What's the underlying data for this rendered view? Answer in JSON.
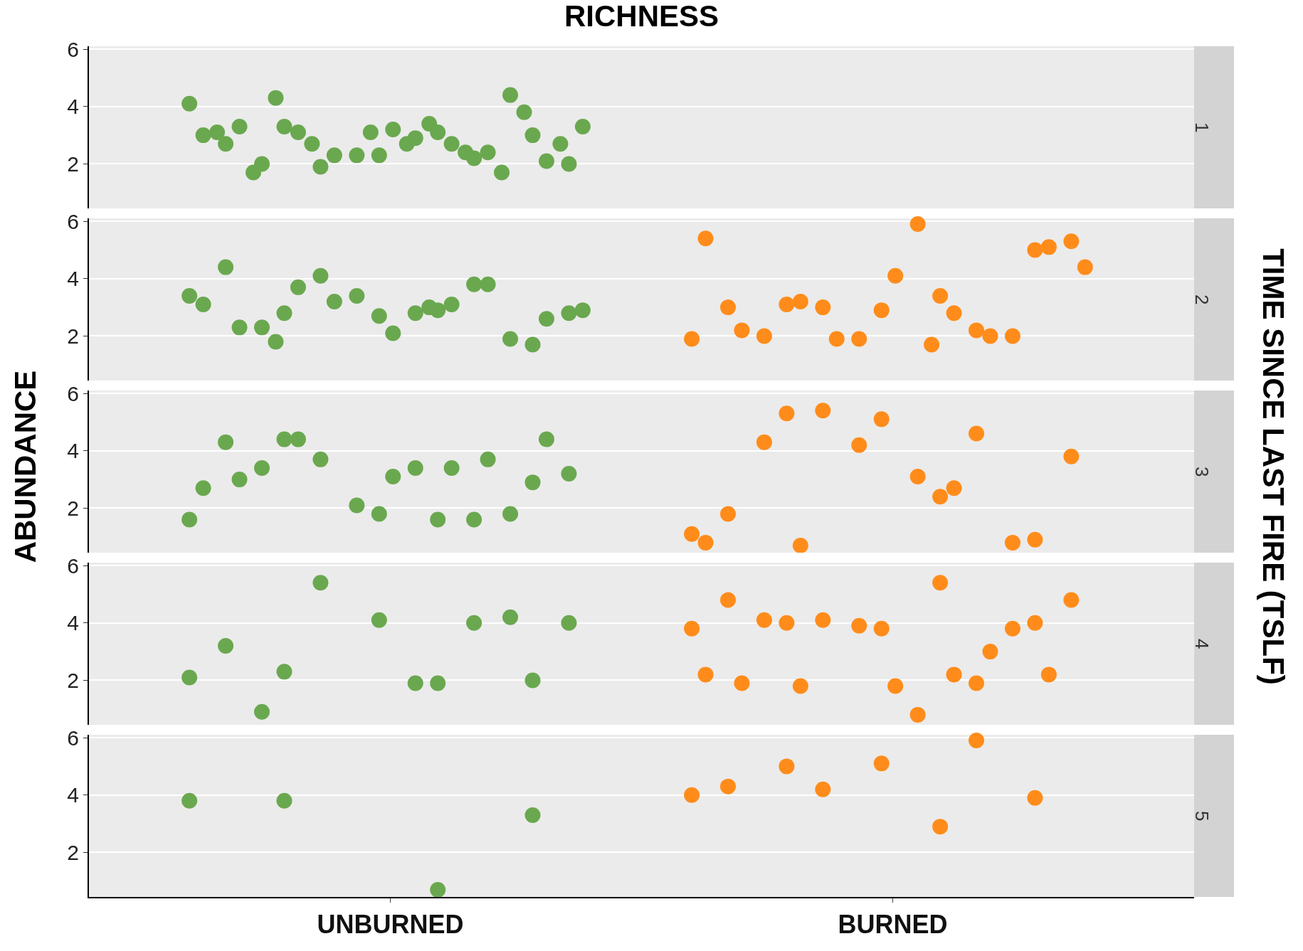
{
  "chart_data": [
    {
      "type": "scatter",
      "title": "RICHNESS",
      "annotations": [
        "1"
      ],
      "marker": "circle",
      "grid": "y",
      "tick_labels": "y",
      "categories": [
        "UNBURNED",
        "BURNED"
      ],
      "ylim": [
        0.45,
        6.1
      ],
      "yticks": [
        2,
        4,
        6
      ],
      "series": [
        {
          "color": "#6aa84f",
          "x": [
            "UNBURNED",
            "UNBURNED",
            "UNBURNED",
            "UNBURNED",
            "UNBURNED",
            "UNBURNED",
            "UNBURNED",
            "UNBURNED",
            "UNBURNED",
            "UNBURNED",
            "UNBURNED",
            "UNBURNED",
            "UNBURNED",
            "UNBURNED",
            "UNBURNED",
            "UNBURNED",
            "UNBURNED",
            "UNBURNED",
            "UNBURNED",
            "UNBURNED",
            "UNBURNED",
            "UNBURNED",
            "UNBURNED",
            "UNBURNED",
            "UNBURNED",
            "UNBURNED",
            "UNBURNED",
            "UNBURNED",
            "UNBURNED",
            "UNBURNED",
            "UNBURNED",
            "UNBURNED",
            "UNBURNED"
          ],
          "values": [
            4.1,
            3.1,
            3.3,
            3.0,
            2.3,
            2.7,
            2.2,
            1.9,
            2.0,
            2.9,
            2.0,
            4.4,
            2.3,
            3.0,
            2.7,
            3.1,
            2.1,
            3.2,
            3.3,
            2.4,
            2.3,
            3.3,
            3.4,
            4.3,
            3.8,
            3.1,
            3.1,
            2.4,
            2.7,
            2.7,
            2.7,
            1.7,
            1.7
          ]
        }
      ]
    },
    {
      "type": "scatter",
      "annotations": [
        "2"
      ],
      "marker": "circle",
      "grid": "y",
      "tick_labels": "y",
      "categories": [
        "UNBURNED",
        "BURNED"
      ],
      "ylim": [
        0.45,
        6.1
      ],
      "yticks": [
        2,
        4,
        6
      ],
      "series": [
        {
          "color": "#6aa84f",
          "x": [
            "UNBURNED",
            "UNBURNED",
            "UNBURNED",
            "UNBURNED",
            "UNBURNED",
            "UNBURNED",
            "UNBURNED",
            "UNBURNED",
            "UNBURNED",
            "UNBURNED",
            "UNBURNED",
            "UNBURNED",
            "UNBURNED",
            "UNBURNED",
            "UNBURNED",
            "UNBURNED",
            "UNBURNED",
            "UNBURNED",
            "UNBURNED",
            "UNBURNED",
            "UNBURNED",
            "UNBURNED",
            "UNBURNED",
            "UNBURNED"
          ],
          "values": [
            3.4,
            2.9,
            2.8,
            1.7,
            2.7,
            4.4,
            3.8,
            4.1,
            2.8,
            2.8,
            2.3,
            1.9,
            3.4,
            3.1,
            3.1,
            3.7,
            2.6,
            2.1,
            2.3,
            3.8,
            3.2,
            2.9,
            3.0,
            1.8
          ]
        },
        {
          "color": "#ff8c1a",
          "x": [
            "BURNED",
            "BURNED",
            "BURNED",
            "BURNED",
            "BURNED",
            "BURNED",
            "BURNED",
            "BURNED",
            "BURNED",
            "BURNED",
            "BURNED",
            "BURNED",
            "BURNED",
            "BURNED",
            "BURNED",
            "BURNED",
            "BURNED",
            "BURNED",
            "BURNED",
            "BURNED",
            "BURNED",
            "BURNED",
            "BURNED"
          ],
          "values": [
            1.9,
            3.4,
            3.1,
            5.0,
            2.9,
            3.0,
            2.2,
            3.0,
            5.3,
            5.9,
            2.0,
            2.0,
            1.9,
            5.4,
            2.8,
            3.2,
            5.1,
            4.1,
            2.2,
            2.0,
            1.9,
            4.4,
            1.7
          ]
        }
      ]
    },
    {
      "type": "scatter",
      "annotations": [
        "3",
        "TIME SINCE LAST FIRE (TSLF)"
      ],
      "ylabel": "ABUNDANCE",
      "marker": "circle",
      "grid": "y",
      "tick_labels": "y",
      "categories": [
        "UNBURNED",
        "BURNED"
      ],
      "ylim": [
        0.45,
        6.1
      ],
      "yticks": [
        2,
        4,
        6
      ],
      "series": [
        {
          "color": "#6aa84f",
          "x": [
            "UNBURNED",
            "UNBURNED",
            "UNBURNED",
            "UNBURNED",
            "UNBURNED",
            "UNBURNED",
            "UNBURNED",
            "UNBURNED",
            "UNBURNED",
            "UNBURNED",
            "UNBURNED",
            "UNBURNED",
            "UNBURNED",
            "UNBURNED",
            "UNBURNED",
            "UNBURNED",
            "UNBURNED",
            "UNBURNED",
            "UNBURNED",
            "UNBURNED"
          ],
          "values": [
            1.6,
            1.6,
            4.4,
            2.9,
            1.8,
            4.3,
            1.6,
            3.7,
            3.2,
            3.4,
            3.4,
            1.8,
            2.1,
            2.7,
            3.4,
            4.4,
            4.4,
            3.1,
            3.0,
            3.7
          ]
        },
        {
          "color": "#ff8c1a",
          "x": [
            "BURNED",
            "BURNED",
            "BURNED",
            "BURNED",
            "BURNED",
            "BURNED",
            "BURNED",
            "BURNED",
            "BURNED",
            "BURNED",
            "BURNED",
            "BURNED",
            "BURNED",
            "BURNED",
            "BURNED",
            "BURNED"
          ],
          "values": [
            1.1,
            2.4,
            5.3,
            0.9,
            5.1,
            1.8,
            4.6,
            5.4,
            3.8,
            3.1,
            4.3,
            0.8,
            4.2,
            0.8,
            2.7,
            0.7
          ]
        }
      ]
    },
    {
      "type": "scatter",
      "annotations": [
        "4"
      ],
      "marker": "circle",
      "grid": "y",
      "tick_labels": "y",
      "categories": [
        "UNBURNED",
        "BURNED"
      ],
      "ylim": [
        0.45,
        6.1
      ],
      "yticks": [
        2,
        4,
        6
      ],
      "series": [
        {
          "color": "#6aa84f",
          "x": [
            "UNBURNED",
            "UNBURNED",
            "UNBURNED",
            "UNBURNED",
            "UNBURNED",
            "UNBURNED",
            "UNBURNED",
            "UNBURNED",
            "UNBURNED",
            "UNBURNED",
            "UNBURNED",
            "UNBURNED"
          ],
          "values": [
            2.1,
            1.9,
            2.3,
            2.0,
            4.1,
            3.2,
            4.0,
            5.4,
            4.0,
            1.9,
            0.9,
            4.2
          ]
        },
        {
          "color": "#ff8c1a",
          "x": [
            "BURNED",
            "BURNED",
            "BURNED",
            "BURNED",
            "BURNED",
            "BURNED",
            "BURNED",
            "BURNED",
            "BURNED",
            "BURNED",
            "BURNED",
            "BURNED",
            "BURNED",
            "BURNED",
            "BURNED",
            "BURNED",
            "BURNED",
            "BURNED",
            "BURNED",
            "BURNED"
          ],
          "values": [
            3.8,
            5.4,
            4.0,
            4.0,
            3.8,
            4.8,
            1.9,
            4.1,
            4.8,
            0.8,
            4.1,
            3.8,
            3.9,
            2.2,
            2.2,
            1.8,
            2.2,
            1.8,
            1.9,
            3.0
          ]
        }
      ]
    },
    {
      "type": "scatter",
      "annotations": [
        "5"
      ],
      "marker": "circle",
      "grid": "y",
      "categories": [
        "UNBURNED",
        "BURNED"
      ],
      "ylim": [
        0.45,
        6.1
      ],
      "yticks": [
        2,
        4,
        6
      ],
      "series": [
        {
          "color": "#6aa84f",
          "x": [
            "UNBURNED",
            "UNBURNED",
            "UNBURNED",
            "UNBURNED"
          ],
          "values": [
            3.8,
            0.7,
            3.8,
            3.3
          ]
        },
        {
          "color": "#ff8c1a",
          "x": [
            "BURNED",
            "BURNED",
            "BURNED",
            "BURNED",
            "BURNED",
            "BURNED",
            "BURNED",
            "BURNED"
          ],
          "values": [
            4.0,
            2.9,
            5.0,
            3.9,
            5.1,
            4.3,
            5.9,
            4.2
          ]
        }
      ]
    }
  ]
}
